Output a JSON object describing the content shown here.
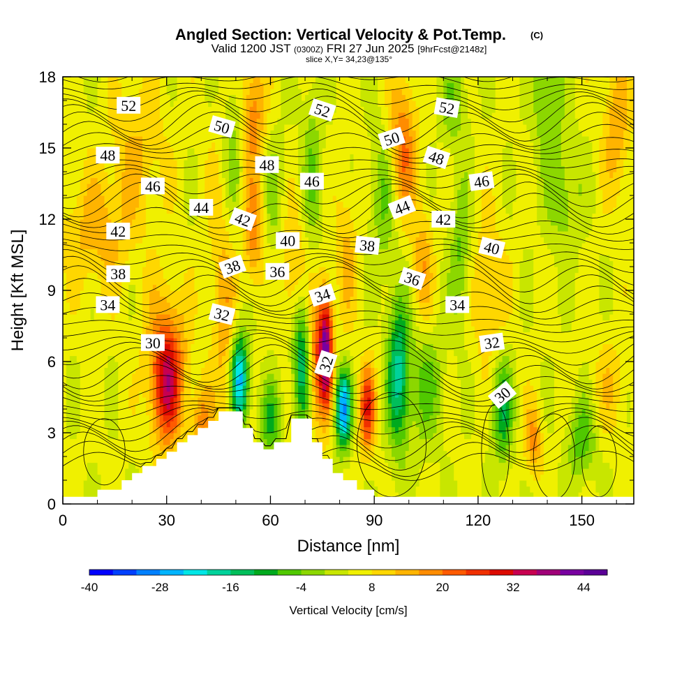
{
  "chart_data": {
    "type": "heatmap",
    "title": "Angled Section: Vertical Velocity & Pot.Temp.",
    "title_mark": "(C)",
    "subtitle": {
      "prefix": "Valid 1200 JST",
      "zulu": "(0300Z)",
      "date": "FRI 27 Jun 2025",
      "forecast": "[9hrFcst@2148z]"
    },
    "slice_note": "slice X,Y= 34,23@135°",
    "xlabel": "Distance [nm]",
    "ylabel": "Height [Kft MSL]",
    "xlim": [
      0,
      165
    ],
    "ylim": [
      0,
      18
    ],
    "x_ticks": [
      "0",
      "30",
      "60",
      "90",
      "120",
      "150"
    ],
    "y_ticks": [
      "0",
      "3",
      "6",
      "9",
      "12",
      "15",
      "18"
    ],
    "grid": false,
    "colorbar": {
      "label": "Vertical Velocity [cm/s]",
      "min": -40,
      "max": 48,
      "step": 4,
      "tick_labels": [
        "-40",
        "-28",
        "-16",
        "-4",
        "8",
        "20",
        "32",
        "44"
      ],
      "colors": [
        "#0000ff",
        "#0040ff",
        "#0080ff",
        "#00b4ff",
        "#00e6e6",
        "#00d29b",
        "#00be5a",
        "#00aa1e",
        "#50c800",
        "#8cd700",
        "#c8e600",
        "#f0f000",
        "#ffd700",
        "#ffb400",
        "#ff8c00",
        "#ff5a00",
        "#f03000",
        "#dc0a00",
        "#c80050",
        "#a00078",
        "#7800a0",
        "#5a0096"
      ]
    },
    "terrain_kft": [
      [
        0,
        0.3
      ],
      [
        10,
        0.3
      ],
      [
        10,
        0.6
      ],
      [
        17,
        0.6
      ],
      [
        17,
        1.0
      ],
      [
        20,
        1.0
      ],
      [
        20,
        1.3
      ],
      [
        23,
        1.3
      ],
      [
        23,
        1.6
      ],
      [
        27,
        1.6
      ],
      [
        27,
        1.9
      ],
      [
        30,
        1.9
      ],
      [
        30,
        2.2
      ],
      [
        33,
        2.2
      ],
      [
        33,
        2.6
      ],
      [
        36,
        2.6
      ],
      [
        36,
        2.9
      ],
      [
        39,
        2.9
      ],
      [
        39,
        3.2
      ],
      [
        42,
        3.2
      ],
      [
        42,
        3.5
      ],
      [
        45,
        3.5
      ],
      [
        45,
        3.9
      ],
      [
        52,
        3.9
      ],
      [
        52,
        3.2
      ],
      [
        55,
        3.2
      ],
      [
        55,
        2.6
      ],
      [
        58,
        2.6
      ],
      [
        58,
        2.3
      ],
      [
        61,
        2.3
      ],
      [
        61,
        2.6
      ],
      [
        66,
        2.6
      ],
      [
        66,
        3.6
      ],
      [
        72,
        3.6
      ],
      [
        72,
        2.6
      ],
      [
        75,
        2.6
      ],
      [
        75,
        1.9
      ],
      [
        78,
        1.9
      ],
      [
        78,
        1.3
      ],
      [
        81,
        1.3
      ],
      [
        81,
        1.0
      ],
      [
        85,
        1.0
      ],
      [
        85,
        0.6
      ],
      [
        90,
        0.6
      ],
      [
        90,
        0.3
      ],
      [
        165,
        0.3
      ]
    ],
    "velocity_features": [
      {
        "x": 10,
        "h": 11.5,
        "rx": 10,
        "ry": 2.5,
        "w": 9
      },
      {
        "x": 22,
        "h": 15.0,
        "rx": 8,
        "ry": 3,
        "w": 7
      },
      {
        "x": 30,
        "h": 4.8,
        "rx": 4.5,
        "ry": 2.4,
        "w": 24
      },
      {
        "x": 30,
        "h": 7.0,
        "rx": 6,
        "ry": 2.5,
        "w": 10
      },
      {
        "x": 40,
        "h": 3.5,
        "rx": 3,
        "ry": 1.5,
        "w": 12
      },
      {
        "x": 47,
        "h": 8.0,
        "rx": 4,
        "ry": 7,
        "w": 10,
        "tilt": -0.18
      },
      {
        "x": 49,
        "h": 14.5,
        "rx": 3.5,
        "ry": 4,
        "w": -8
      },
      {
        "x": 51,
        "h": 5.2,
        "rx": 2.6,
        "ry": 2.0,
        "w": -34
      },
      {
        "x": 55,
        "h": 11.5,
        "rx": 3,
        "ry": 2.2,
        "w": 14
      },
      {
        "x": 55,
        "h": 16.5,
        "rx": 3.5,
        "ry": 2.5,
        "w": 14
      },
      {
        "x": 61,
        "h": 13.0,
        "rx": 3,
        "ry": 3,
        "w": -6
      },
      {
        "x": 60,
        "h": 3.5,
        "rx": 3,
        "ry": 1.6,
        "w": -14
      },
      {
        "x": 69,
        "h": 6.0,
        "rx": 2.6,
        "ry": 3.0,
        "w": -20
      },
      {
        "x": 67,
        "h": 9.8,
        "rx": 4,
        "ry": 2.5,
        "w": 10
      },
      {
        "x": 73,
        "h": 6.0,
        "rx": 2.4,
        "ry": 3.0,
        "w": 14
      },
      {
        "x": 76,
        "h": 6.5,
        "rx": 2.0,
        "ry": 2.4,
        "w": 36
      },
      {
        "x": 72,
        "h": 14.0,
        "rx": 3,
        "ry": 4,
        "w": -8
      },
      {
        "x": 81,
        "h": 4.0,
        "rx": 2.2,
        "ry": 1.6,
        "w": -34
      },
      {
        "x": 82,
        "h": 10.5,
        "rx": 3,
        "ry": 3,
        "w": 8
      },
      {
        "x": 88,
        "h": 4.0,
        "rx": 2.3,
        "ry": 1.8,
        "w": 22
      },
      {
        "x": 93,
        "h": 13.0,
        "rx": 4,
        "ry": 3,
        "w": -10
      },
      {
        "x": 97,
        "h": 5.5,
        "rx": 3.2,
        "ry": 3.2,
        "w": -22
      },
      {
        "x": 98,
        "h": 15.0,
        "rx": 4,
        "ry": 3,
        "w": 16
      },
      {
        "x": 104,
        "h": 10.0,
        "rx": 3,
        "ry": 2.5,
        "w": 10
      },
      {
        "x": 105,
        "h": 5.0,
        "rx": 5,
        "ry": 2.5,
        "w": -10
      },
      {
        "x": 113,
        "h": 17.0,
        "rx": 4,
        "ry": 2,
        "w": -8
      },
      {
        "x": 115,
        "h": 10.5,
        "rx": 3,
        "ry": 3,
        "w": -10
      },
      {
        "x": 123,
        "h": 9.0,
        "rx": 5,
        "ry": 3,
        "w": 8
      },
      {
        "x": 127,
        "h": 4.0,
        "rx": 3,
        "ry": 2.2,
        "w": -16
      },
      {
        "x": 136,
        "h": 2.7,
        "rx": 2.5,
        "ry": 1.5,
        "w": 12
      },
      {
        "x": 140,
        "h": 17.0,
        "rx": 4,
        "ry": 2.5,
        "w": -10
      },
      {
        "x": 145,
        "h": 13.0,
        "rx": 5,
        "ry": 2.5,
        "w": -8
      },
      {
        "x": 150,
        "h": 2.7,
        "rx": 4,
        "ry": 1.7,
        "w": -12
      },
      {
        "x": 160,
        "h": 16.0,
        "rx": 4,
        "ry": 3,
        "w": 10
      },
      {
        "x": 158,
        "h": 5.0,
        "rx": 5,
        "ry": 2,
        "w": 6
      }
    ],
    "theta_labels": [
      {
        "text": "52",
        "x": 19,
        "h": 16.8,
        "rot": 0
      },
      {
        "text": "50",
        "x": 46,
        "h": 15.9,
        "rot": 16
      },
      {
        "text": "52",
        "x": 75,
        "h": 16.6,
        "rot": 18
      },
      {
        "text": "52",
        "x": 111,
        "h": 16.7,
        "rot": 10
      },
      {
        "text": "48",
        "x": 13,
        "h": 14.7,
        "rot": 0
      },
      {
        "text": "48",
        "x": 59,
        "h": 14.3,
        "rot": 0
      },
      {
        "text": "50",
        "x": 95,
        "h": 15.4,
        "rot": -18
      },
      {
        "text": "48",
        "x": 108,
        "h": 14.6,
        "rot": 18
      },
      {
        "text": "46",
        "x": 26,
        "h": 13.4,
        "rot": 0
      },
      {
        "text": "46",
        "x": 72,
        "h": 13.6,
        "rot": 0
      },
      {
        "text": "46",
        "x": 121,
        "h": 13.6,
        "rot": -8
      },
      {
        "text": "44",
        "x": 40,
        "h": 12.5,
        "rot": 0
      },
      {
        "text": "42",
        "x": 52,
        "h": 12.0,
        "rot": 20
      },
      {
        "text": "44",
        "x": 98,
        "h": 12.5,
        "rot": -22
      },
      {
        "text": "42",
        "x": 110,
        "h": 12.0,
        "rot": 0
      },
      {
        "text": "42",
        "x": 16,
        "h": 11.5,
        "rot": 0
      },
      {
        "text": "40",
        "x": 65,
        "h": 11.1,
        "rot": 0
      },
      {
        "text": "40",
        "x": 124,
        "h": 10.8,
        "rot": 14
      },
      {
        "text": "38",
        "x": 88,
        "h": 10.9,
        "rot": 6
      },
      {
        "text": "38",
        "x": 49,
        "h": 10.0,
        "rot": -20
      },
      {
        "text": "36",
        "x": 62,
        "h": 9.8,
        "rot": 0
      },
      {
        "text": "38",
        "x": 16,
        "h": 9.7,
        "rot": 0
      },
      {
        "text": "36",
        "x": 101,
        "h": 9.5,
        "rot": 18
      },
      {
        "text": "34",
        "x": 75,
        "h": 8.8,
        "rot": -18
      },
      {
        "text": "34",
        "x": 13,
        "h": 8.4,
        "rot": 0
      },
      {
        "text": "34",
        "x": 114,
        "h": 8.4,
        "rot": 0
      },
      {
        "text": "32",
        "x": 46,
        "h": 8.0,
        "rot": 14
      },
      {
        "text": "32",
        "x": 124,
        "h": 6.8,
        "rot": -8
      },
      {
        "text": "30",
        "x": 26,
        "h": 6.8,
        "rot": 0
      },
      {
        "text": "32",
        "x": 76,
        "h": 5.9,
        "rot": -72
      },
      {
        "text": "30",
        "x": 127,
        "h": 4.6,
        "rot": -40
      }
    ]
  }
}
